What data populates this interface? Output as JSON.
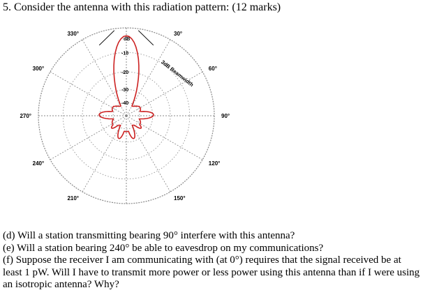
{
  "question": {
    "title": "5. Consider the antenna with this radiation pattern: (12 marks)"
  },
  "diagram": {
    "angle_labels": [
      {
        "text": "30°",
        "deg": 30
      },
      {
        "text": "60°",
        "deg": 60
      },
      {
        "text": "90°",
        "deg": 90
      },
      {
        "text": "120°",
        "deg": 120
      },
      {
        "text": "150°",
        "deg": 150
      },
      {
        "text": "210°",
        "deg": 210
      },
      {
        "text": "240°",
        "deg": 240
      },
      {
        "text": "270°",
        "deg": 270
      },
      {
        "text": "300°",
        "deg": 300
      },
      {
        "text": "330°",
        "deg": 330
      }
    ],
    "unit_label": "dB",
    "db_labels": [
      "-10",
      "-20",
      "-30",
      "-40"
    ],
    "beamwidth_label": "3dB Beamwidth",
    "pattern_color": "#cc2222",
    "grid_color": "#888888"
  },
  "parts": {
    "d": "(d) Will a station transmitting bearing 90° interfere with this antenna?",
    "e": "(e) Will a station bearing 240° be able to eavesdrop on my communications?",
    "f": "(f) Suppose the receiver I am communicating with (at 0°) requires that the signal received be at least 1 pW. Will I have to transmit more power or less power using this antenna than if I were using an isotropic antenna? Why?"
  }
}
